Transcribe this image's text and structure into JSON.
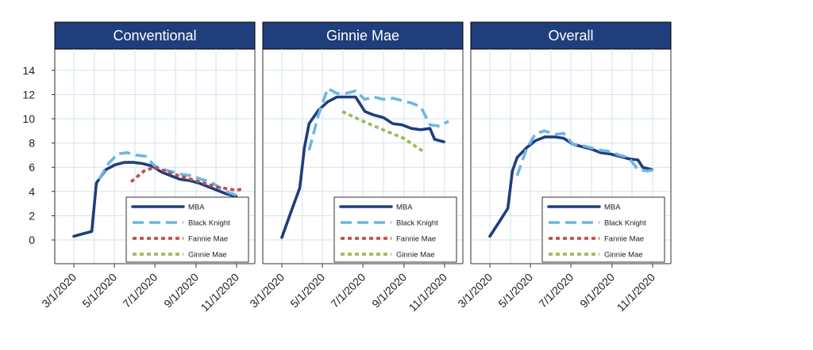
{
  "colors": {
    "title_bar": "#1f3e7c",
    "grid": "#d2e3f1",
    "MBA": "#1f3e7c",
    "Black Knight": "#6db6e3",
    "Fannie Mae": "#c0504d",
    "Ginnie Mae": "#9bbb59"
  },
  "chart_data": [
    {
      "type": "line",
      "title": "Conventional",
      "ylim": [
        -2,
        15
      ],
      "yticks": [
        0,
        2,
        4,
        6,
        8,
        10,
        12,
        14
      ],
      "xticks": [
        "3/1/2020",
        "5/1/2020",
        "7/1/2020",
        "9/1/2020",
        "11/1/2020"
      ],
      "grid": true,
      "legend_position": "bottom-right",
      "legend": [
        "MBA",
        "Black Knight",
        "Fannie Mae",
        "Ginnie Mae"
      ],
      "series": [
        {
          "name": "MBA",
          "style": "solid",
          "points": [
            [
              "2020-03-01",
              0.3
            ],
            [
              "2020-03-14",
              0.5
            ],
            [
              "2020-03-28",
              0.7
            ],
            [
              "2020-04-04",
              4.7
            ],
            [
              "2020-04-18",
              5.8
            ],
            [
              "2020-05-02",
              6.2
            ],
            [
              "2020-05-16",
              6.4
            ],
            [
              "2020-05-30",
              6.4
            ],
            [
              "2020-06-13",
              6.3
            ],
            [
              "2020-06-27",
              6.1
            ],
            [
              "2020-07-11",
              5.6
            ],
            [
              "2020-07-25",
              5.3
            ],
            [
              "2020-08-08",
              5.0
            ],
            [
              "2020-08-22",
              4.9
            ],
            [
              "2020-09-05",
              4.7
            ],
            [
              "2020-09-19",
              4.4
            ],
            [
              "2020-10-03",
              4.1
            ],
            [
              "2020-10-17",
              3.8
            ],
            [
              "2020-10-31",
              3.6
            ]
          ]
        },
        {
          "name": "Black Knight",
          "style": "dashed",
          "points": [
            [
              "2020-04-08",
              5.0
            ],
            [
              "2020-04-22",
              6.3
            ],
            [
              "2020-05-06",
              7.1
            ],
            [
              "2020-05-20",
              7.2
            ],
            [
              "2020-06-03",
              7.0
            ],
            [
              "2020-06-17",
              6.9
            ],
            [
              "2020-07-01",
              6.1
            ],
            [
              "2020-07-15",
              5.8
            ],
            [
              "2020-07-29",
              5.6
            ],
            [
              "2020-08-12",
              5.4
            ],
            [
              "2020-08-26",
              5.3
            ],
            [
              "2020-09-09",
              5.0
            ],
            [
              "2020-09-23",
              4.8
            ],
            [
              "2020-10-07",
              4.3
            ],
            [
              "2020-10-21",
              3.9
            ],
            [
              "2020-10-31",
              3.7
            ]
          ]
        },
        {
          "name": "Fannie Mae",
          "style": "dotted",
          "points": [
            [
              "2020-05-26",
              4.8
            ],
            [
              "2020-06-15",
              5.7
            ],
            [
              "2020-07-01",
              6.0
            ],
            [
              "2020-07-31",
              5.4
            ],
            [
              "2020-08-31",
              4.9
            ],
            [
              "2020-09-30",
              4.4
            ],
            [
              "2020-10-31",
              4.1
            ],
            [
              "2020-11-10",
              4.2
            ]
          ]
        }
      ]
    },
    {
      "type": "line",
      "title": "Ginnie Mae",
      "ylim": [
        -2,
        15
      ],
      "yticks": [
        0,
        2,
        4,
        6,
        8,
        10,
        12,
        14
      ],
      "xticks": [
        "3/1/2020",
        "5/1/2020",
        "7/1/2020",
        "9/1/2020",
        "11/1/2020"
      ],
      "grid": true,
      "legend_position": "bottom-right",
      "legend": [
        "MBA",
        "Black Knight",
        "Fannie Mae",
        "Ginnie Mae"
      ],
      "series": [
        {
          "name": "MBA",
          "style": "solid",
          "points": [
            [
              "2020-03-01",
              0.2
            ],
            [
              "2020-03-14",
              2.2
            ],
            [
              "2020-03-28",
              4.3
            ],
            [
              "2020-04-04",
              7.6
            ],
            [
              "2020-04-11",
              9.6
            ],
            [
              "2020-04-25",
              10.7
            ],
            [
              "2020-05-09",
              11.4
            ],
            [
              "2020-05-23",
              11.8
            ],
            [
              "2020-06-06",
              11.8
            ],
            [
              "2020-06-20",
              11.8
            ],
            [
              "2020-07-04",
              10.6
            ],
            [
              "2020-07-18",
              10.3
            ],
            [
              "2020-08-01",
              10.1
            ],
            [
              "2020-08-15",
              9.6
            ],
            [
              "2020-08-29",
              9.5
            ],
            [
              "2020-09-12",
              9.2
            ],
            [
              "2020-09-26",
              9.1
            ],
            [
              "2020-10-10",
              9.2
            ],
            [
              "2020-10-17",
              8.3
            ],
            [
              "2020-10-31",
              8.1
            ]
          ]
        },
        {
          "name": "Black Knight",
          "style": "dashed",
          "points": [
            [
              "2020-04-11",
              7.4
            ],
            [
              "2020-04-25",
              10.3
            ],
            [
              "2020-05-09",
              12.5
            ],
            [
              "2020-05-23",
              12.1
            ],
            [
              "2020-06-06",
              12.1
            ],
            [
              "2020-06-20",
              12.3
            ],
            [
              "2020-07-04",
              11.6
            ],
            [
              "2020-07-18",
              11.8
            ],
            [
              "2020-08-01",
              11.6
            ],
            [
              "2020-08-15",
              11.7
            ],
            [
              "2020-08-29",
              11.5
            ],
            [
              "2020-09-12",
              11.3
            ],
            [
              "2020-09-26",
              11.0
            ],
            [
              "2020-10-10",
              9.5
            ],
            [
              "2020-10-24",
              9.4
            ],
            [
              "2020-11-07",
              9.8
            ]
          ]
        },
        {
          "name": "Ginnie Mae",
          "style": "dotted",
          "points": [
            [
              "2020-05-31",
              10.6
            ],
            [
              "2020-07-01",
              9.8
            ],
            [
              "2020-07-31",
              9.1
            ],
            [
              "2020-08-31",
              8.4
            ],
            [
              "2020-09-30",
              7.3
            ]
          ]
        }
      ]
    },
    {
      "type": "line",
      "title": "Overall",
      "ylim": [
        -2,
        15
      ],
      "yticks": [
        0,
        2,
        4,
        6,
        8,
        10,
        12,
        14
      ],
      "xticks": [
        "3/1/2020",
        "5/1/2020",
        "7/1/2020",
        "9/1/2020",
        "11/1/2020"
      ],
      "grid": true,
      "legend_position": "bottom-right",
      "legend": [
        "MBA",
        "Black Knight",
        "Fannie Mae",
        "Ginnie Mae"
      ],
      "series": [
        {
          "name": "MBA",
          "style": "solid",
          "points": [
            [
              "2020-03-01",
              0.3
            ],
            [
              "2020-03-14",
              1.4
            ],
            [
              "2020-03-28",
              2.6
            ],
            [
              "2020-04-04",
              5.7
            ],
            [
              "2020-04-11",
              6.8
            ],
            [
              "2020-04-25",
              7.6
            ],
            [
              "2020-05-09",
              8.2
            ],
            [
              "2020-05-23",
              8.5
            ],
            [
              "2020-06-06",
              8.5
            ],
            [
              "2020-06-20",
              8.4
            ],
            [
              "2020-07-04",
              7.9
            ],
            [
              "2020-07-18",
              7.7
            ],
            [
              "2020-08-01",
              7.5
            ],
            [
              "2020-08-15",
              7.2
            ],
            [
              "2020-08-29",
              7.1
            ],
            [
              "2020-09-12",
              6.9
            ],
            [
              "2020-09-26",
              6.7
            ],
            [
              "2020-10-10",
              6.6
            ],
            [
              "2020-10-17",
              6.0
            ],
            [
              "2020-10-31",
              5.8
            ]
          ]
        },
        {
          "name": "Black Knight",
          "style": "dashed",
          "points": [
            [
              "2020-04-11",
              5.3
            ],
            [
              "2020-04-25",
              7.5
            ],
            [
              "2020-05-09",
              8.8
            ],
            [
              "2020-05-23",
              9.0
            ],
            [
              "2020-06-06",
              8.7
            ],
            [
              "2020-06-20",
              8.8
            ],
            [
              "2020-07-04",
              7.9
            ],
            [
              "2020-07-18",
              7.8
            ],
            [
              "2020-08-01",
              7.6
            ],
            [
              "2020-08-15",
              7.4
            ],
            [
              "2020-08-29",
              7.3
            ],
            [
              "2020-09-12",
              7.0
            ],
            [
              "2020-09-26",
              6.8
            ],
            [
              "2020-10-10",
              5.8
            ],
            [
              "2020-10-24",
              5.7
            ],
            [
              "2020-11-07",
              5.8
            ]
          ]
        }
      ]
    }
  ]
}
